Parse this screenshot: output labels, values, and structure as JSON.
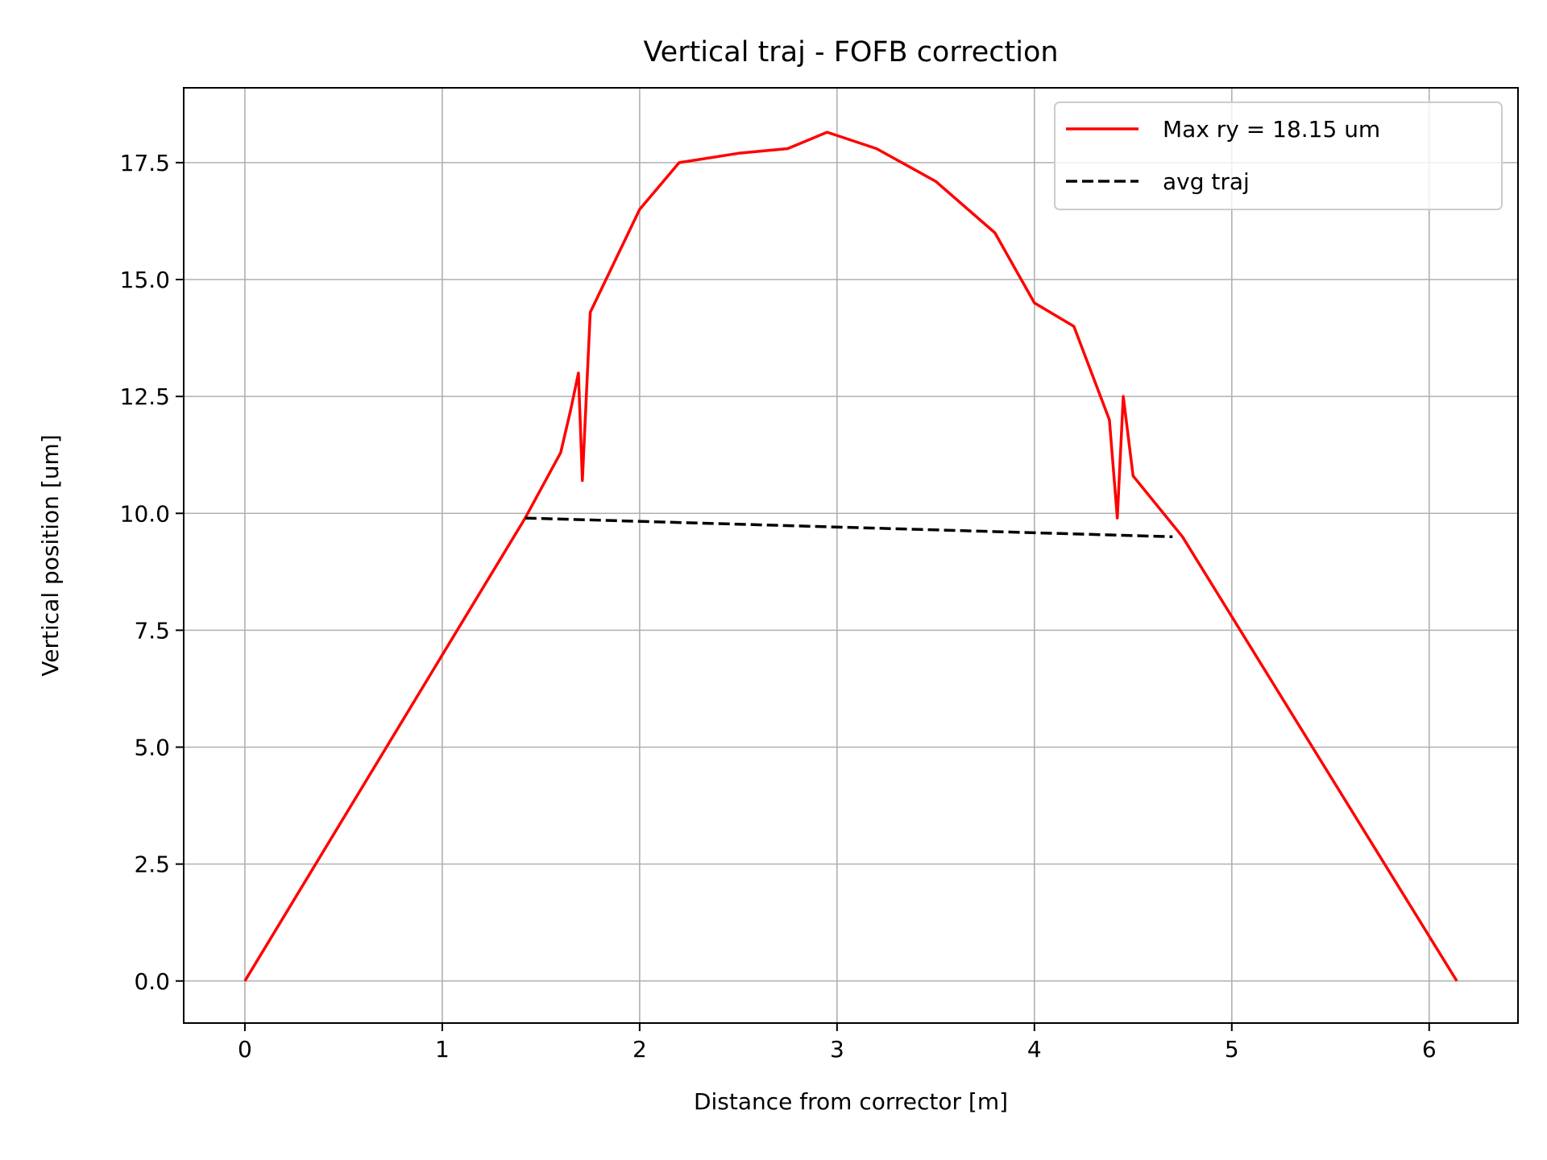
{
  "chart_data": {
    "type": "line",
    "title": "Vertical traj - FOFB correction",
    "xlabel": "Distance from corrector [m]",
    "ylabel": "Vertical position [um]",
    "xlim": [
      -0.31,
      6.45
    ],
    "ylim": [
      -0.9,
      19.1
    ],
    "xticks": [
      0,
      1,
      2,
      3,
      4,
      5,
      6
    ],
    "yticks": [
      0.0,
      2.5,
      5.0,
      7.5,
      10.0,
      12.5,
      15.0,
      17.5
    ],
    "xtick_labels": [
      "0",
      "1",
      "2",
      "3",
      "4",
      "5",
      "6"
    ],
    "ytick_labels": [
      "0.0",
      "2.5",
      "5.0",
      "7.5",
      "10.0",
      "12.5",
      "15.0",
      "17.5"
    ],
    "grid": true,
    "legend_position": "top-right",
    "series": [
      {
        "name": "Max ry = 18.15 um",
        "color": "#ff0000",
        "style": "solid",
        "x": [
          0.0,
          1.42,
          1.6,
          1.65,
          1.69,
          1.71,
          1.75,
          2.0,
          2.2,
          2.5,
          2.75,
          2.95,
          3.2,
          3.5,
          3.8,
          4.0,
          4.2,
          4.38,
          4.42,
          4.45,
          4.5,
          4.75,
          6.14
        ],
        "y": [
          0.0,
          9.9,
          11.3,
          12.2,
          13.0,
          10.7,
          14.3,
          16.5,
          17.5,
          17.7,
          17.8,
          18.15,
          17.8,
          17.1,
          16.0,
          14.5,
          14.0,
          12.0,
          9.9,
          12.5,
          10.8,
          9.5,
          0.0
        ]
      },
      {
        "name": "avg traj",
        "color": "#000000",
        "style": "dashed",
        "x": [
          1.42,
          4.7
        ],
        "y": [
          9.9,
          9.5
        ]
      }
    ]
  },
  "colors": {
    "grid": "#b0b0b0",
    "axes": "#000000",
    "background": "#ffffff"
  }
}
